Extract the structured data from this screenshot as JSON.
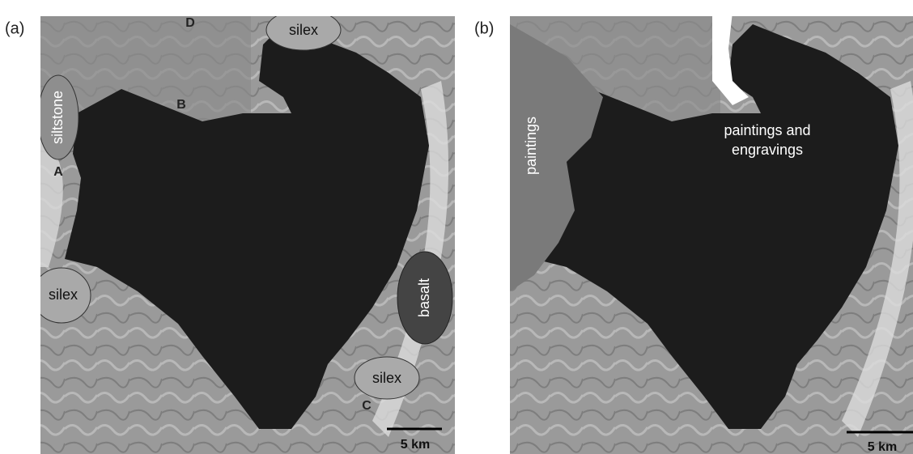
{
  "panels": [
    {
      "label": "(a)",
      "annotations": {
        "d": "D",
        "silex_top": "silex",
        "siltstone": "siltstone",
        "b": "B",
        "a": "A",
        "silex_left": "silex",
        "basalt": "basalt",
        "silex_bottom": "silex",
        "c": "C"
      },
      "scale": "5 km"
    },
    {
      "label": "(b)",
      "annotations": {
        "paintings": "paintings",
        "paintings_engravings": [
          "paintings and",
          "engravings"
        ]
      },
      "scale": "5 km"
    }
  ]
}
